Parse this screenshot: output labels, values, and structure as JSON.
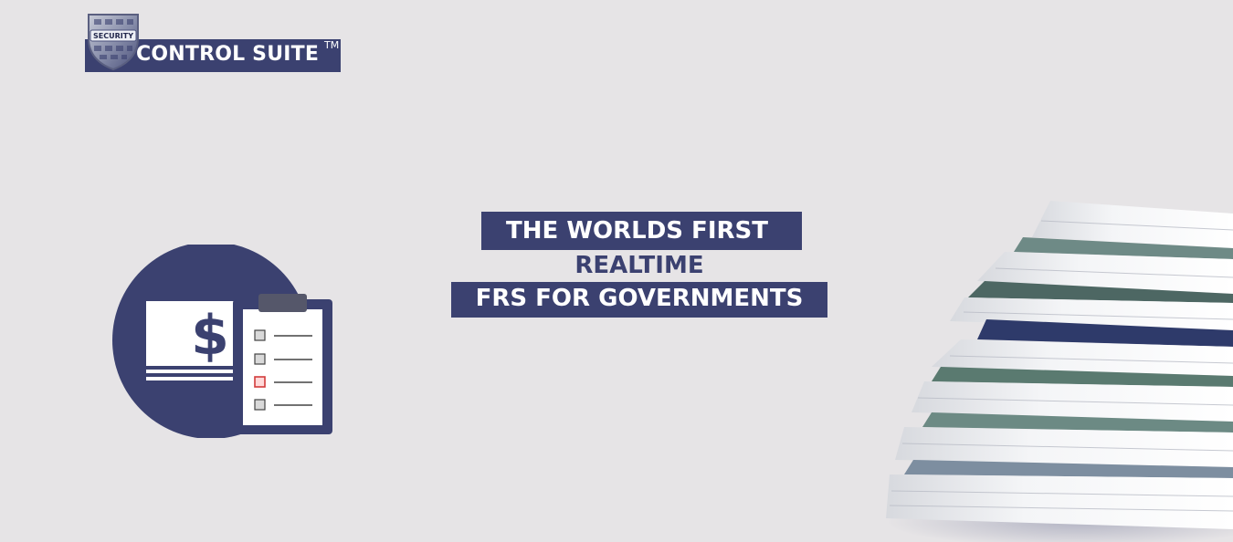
{
  "brand": {
    "name": "CONTROL SUITE",
    "trademark": "TM",
    "shield_label": "SECURITY"
  },
  "headline": {
    "line1": "THE WORLDS FIRST",
    "line2": "REALTIME",
    "line3": "FRS FOR GOVERNMENTS"
  },
  "illustration": {
    "currency_symbol": "$",
    "checklist_items": 4,
    "highlighted_item": 3
  },
  "colors": {
    "background": "#e6e4e6",
    "navy": "#3b4170",
    "checkbox_alert": "#d23b3b"
  },
  "icons": [
    "security-shield-icon",
    "finance-checklist-icon",
    "paper-stack-image"
  ]
}
